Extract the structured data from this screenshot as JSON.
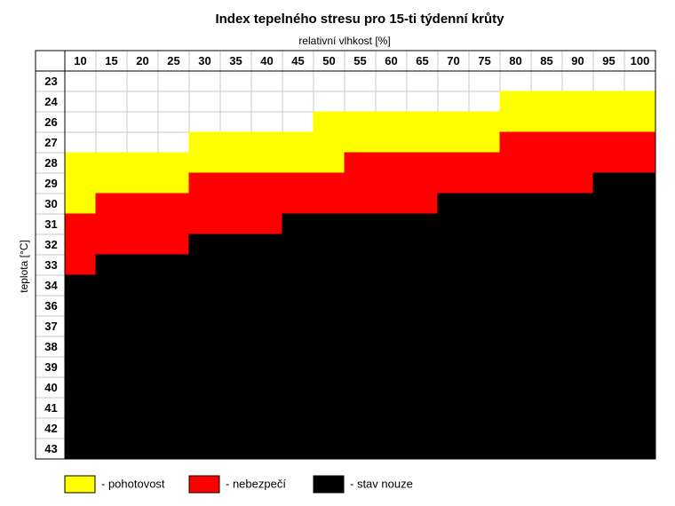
{
  "chart_data": {
    "type": "heatmap",
    "title": "Index tepelného stresu pro 15-ti týdenní krůty",
    "x_label": "relativní vlhkost [%]",
    "y_label": "teplota [°C]",
    "columns": [
      10,
      15,
      20,
      25,
      30,
      35,
      40,
      45,
      50,
      55,
      60,
      65,
      70,
      75,
      80,
      85,
      90,
      95,
      100
    ],
    "rows": [
      23,
      24,
      26,
      27,
      28,
      29,
      30,
      31,
      32,
      33,
      34,
      36,
      37,
      38,
      39,
      40,
      41,
      42,
      43
    ],
    "levels": [
      {
        "name": "- pohotovost",
        "color": "#ffff00"
      },
      {
        "name": "- nebezpečí",
        "color": "#ff0000"
      },
      {
        "name": "- stav nouze",
        "color": "#000000"
      }
    ],
    "values": [
      [
        null,
        null,
        null,
        null,
        null,
        null,
        null,
        null,
        null,
        null,
        null,
        null,
        null,
        null,
        null,
        null,
        null,
        null,
        null
      ],
      [
        null,
        null,
        null,
        null,
        null,
        null,
        null,
        null,
        null,
        null,
        null,
        null,
        null,
        null,
        0,
        0,
        0,
        0,
        0
      ],
      [
        null,
        null,
        null,
        null,
        null,
        null,
        null,
        null,
        0,
        0,
        0,
        0,
        0,
        0,
        0,
        0,
        0,
        0,
        0
      ],
      [
        null,
        null,
        null,
        null,
        0,
        0,
        0,
        0,
        0,
        0,
        0,
        0,
        0,
        0,
        1,
        1,
        1,
        1,
        1
      ],
      [
        0,
        0,
        0,
        0,
        0,
        0,
        0,
        0,
        0,
        1,
        1,
        1,
        1,
        1,
        1,
        1,
        1,
        1,
        1
      ],
      [
        0,
        0,
        0,
        0,
        1,
        1,
        1,
        1,
        1,
        1,
        1,
        1,
        1,
        1,
        1,
        1,
        1,
        2,
        2
      ],
      [
        0,
        1,
        1,
        1,
        1,
        1,
        1,
        1,
        1,
        1,
        1,
        1,
        2,
        2,
        2,
        2,
        2,
        2,
        2
      ],
      [
        1,
        1,
        1,
        1,
        1,
        1,
        1,
        2,
        2,
        2,
        2,
        2,
        2,
        2,
        2,
        2,
        2,
        2,
        2
      ],
      [
        1,
        1,
        1,
        1,
        2,
        2,
        2,
        2,
        2,
        2,
        2,
        2,
        2,
        2,
        2,
        2,
        2,
        2,
        2
      ],
      [
        1,
        2,
        2,
        2,
        2,
        2,
        2,
        2,
        2,
        2,
        2,
        2,
        2,
        2,
        2,
        2,
        2,
        2,
        2
      ],
      [
        2,
        2,
        2,
        2,
        2,
        2,
        2,
        2,
        2,
        2,
        2,
        2,
        2,
        2,
        2,
        2,
        2,
        2,
        2
      ],
      [
        2,
        2,
        2,
        2,
        2,
        2,
        2,
        2,
        2,
        2,
        2,
        2,
        2,
        2,
        2,
        2,
        2,
        2,
        2
      ],
      [
        2,
        2,
        2,
        2,
        2,
        2,
        2,
        2,
        2,
        2,
        2,
        2,
        2,
        2,
        2,
        2,
        2,
        2,
        2
      ],
      [
        2,
        2,
        2,
        2,
        2,
        2,
        2,
        2,
        2,
        2,
        2,
        2,
        2,
        2,
        2,
        2,
        2,
        2,
        2
      ],
      [
        2,
        2,
        2,
        2,
        2,
        2,
        2,
        2,
        2,
        2,
        2,
        2,
        2,
        2,
        2,
        2,
        2,
        2,
        2
      ],
      [
        2,
        2,
        2,
        2,
        2,
        2,
        2,
        2,
        2,
        2,
        2,
        2,
        2,
        2,
        2,
        2,
        2,
        2,
        2
      ],
      [
        2,
        2,
        2,
        2,
        2,
        2,
        2,
        2,
        2,
        2,
        2,
        2,
        2,
        2,
        2,
        2,
        2,
        2,
        2
      ],
      [
        2,
        2,
        2,
        2,
        2,
        2,
        2,
        2,
        2,
        2,
        2,
        2,
        2,
        2,
        2,
        2,
        2,
        2,
        2
      ],
      [
        2,
        2,
        2,
        2,
        2,
        2,
        2,
        2,
        2,
        2,
        2,
        2,
        2,
        2,
        2,
        2,
        2,
        2,
        2
      ]
    ]
  }
}
